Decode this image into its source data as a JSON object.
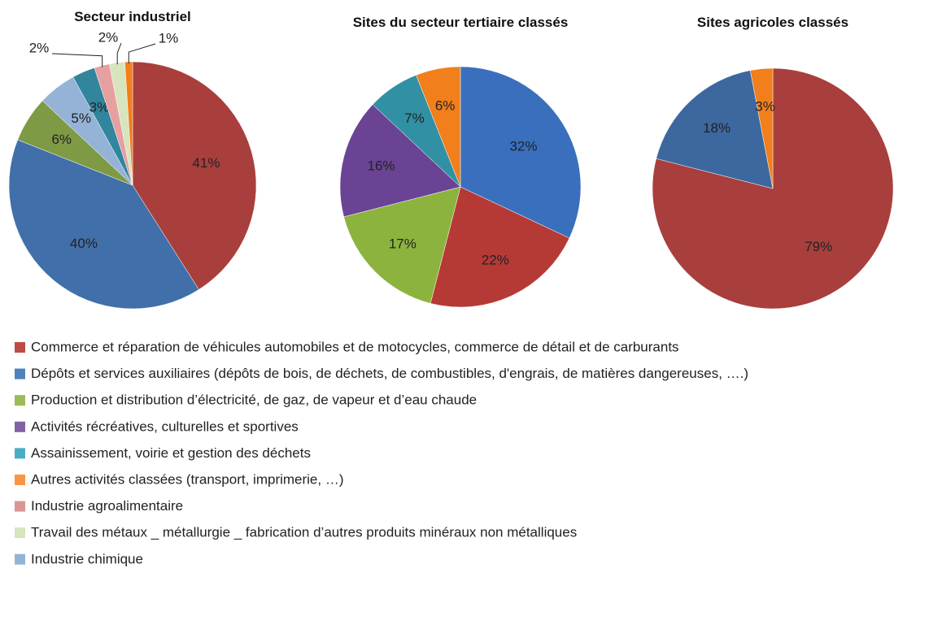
{
  "chart_data": [
    {
      "type": "pie",
      "title": "Secteur industriel",
      "categories": [
        "Commerce et réparation de véhicules automobiles et de motocycles, commerce de détail et de carburants",
        "Dépôts et services auxiliaires (dépôts de bois, de déchets, de combustibles, d'engrais, de matières dangereuses, ….)",
        "Production et distribution d’électricité, de gaz, de vapeur et d’eau chaude",
        "Industrie chimique",
        "Assainissement, voirie et gestion des déchets",
        "Industrie agroalimentaire",
        "Travail des métaux _ métallurgie _ fabrication d’autres produits minéraux non métalliques",
        "Autres activités classées (transport, imprimerie, …)"
      ],
      "values": [
        41,
        40,
        6,
        5,
        3,
        2,
        2,
        1
      ],
      "value_labels": [
        "41%",
        "40%",
        "6%",
        "5%",
        "3%",
        "2%",
        "2%",
        "1%"
      ],
      "colors": [
        "#a83f3d",
        "#416fa9",
        "#7f9a45",
        "#95b3d7",
        "#31859c",
        "#e6a0a0",
        "#d7e4bd",
        "#f07f1c"
      ]
    },
    {
      "type": "pie",
      "title": "Sites du secteur tertiaire classés",
      "categories": [
        "Dépôts et services auxiliaires (dépôts de bois, de déchets, de combustibles, d'engrais, de matières dangereuses, ….)",
        "Commerce et réparation de véhicules automobiles et de motocycles, commerce de détail et de carburants",
        "Production et distribution d’électricité, de gaz, de vapeur et d’eau chaude",
        "Activités récréatives, culturelles et sportives",
        "Assainissement, voirie et gestion des déchets",
        "Autres activités classées (transport, imprimerie, …)"
      ],
      "values": [
        32,
        22,
        17,
        16,
        7,
        6
      ],
      "value_labels": [
        "32%",
        "22%",
        "17%",
        "16%",
        "7%",
        "6%"
      ],
      "colors": [
        "#3a6fbd",
        "#b53a36",
        "#8db33f",
        "#6a4394",
        "#3290a4",
        "#f07f1c"
      ]
    },
    {
      "type": "pie",
      "title": "Sites agricoles classés",
      "categories": [
        "Commerce et réparation de véhicules automobiles et de motocycles, commerce de détail et de carburants",
        "Dépôts et services auxiliaires (dépôts de bois, de déchets, de combustibles, d'engrais, de matières dangereuses, ….)",
        "Autres activités classées (transport, imprimerie, …)"
      ],
      "values": [
        79,
        18,
        3
      ],
      "value_labels": [
        "79%",
        "18%",
        "3%"
      ],
      "colors": [
        "#a83f3d",
        "#3d679f",
        "#f07f1c"
      ]
    }
  ],
  "legend": [
    {
      "name": "Commerce et réparation de véhicules automobiles et de motocycles, commerce de détail et de carburants",
      "color": "#be4b48"
    },
    {
      "name": "Dépôts et services auxiliaires (dépôts de bois, de déchets, de combustibles, d'engrais, de matières dangereuses, ….)",
      "color": "#4f81bd"
    },
    {
      "name": "Production et distribution d’électricité, de gaz, de vapeur et d’eau chaude",
      "color": "#9bbb59"
    },
    {
      "name": "Activités récréatives, culturelles et sportives",
      "color": "#8064a2"
    },
    {
      "name": "Assainissement, voirie et gestion des déchets",
      "color": "#4bacc6"
    },
    {
      "name": "Autres activités classées (transport, imprimerie, …)",
      "color": "#f79646"
    },
    {
      "name": "Industrie agroalimentaire",
      "color": "#d99694"
    },
    {
      "name": "Travail des métaux _ métallurgie _ fabrication d’autres produits minéraux non métalliques",
      "color": "#d7e4bd"
    },
    {
      "name": "Industrie chimique",
      "color": "#95b3d7"
    }
  ]
}
